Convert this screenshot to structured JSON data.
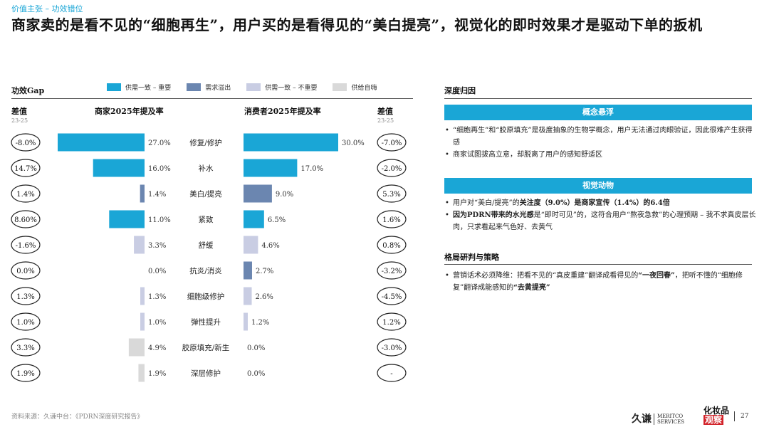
{
  "breadcrumb": "价值主张 – 功效错位",
  "title": "商家卖的是看不见的“细胞再生”，用户买的是看得见的“美白提亮”，视觉化的即时效果才是驱动下单的扳机",
  "gap_label": "功效Gap",
  "legend": [
    {
      "label": "供需一致 – 重要",
      "color": "#1aa6d6"
    },
    {
      "label": "需求溢出",
      "color": "#6b86b0"
    },
    {
      "label": "供需一致 – 不重要",
      "color": "#c9cde3"
    },
    {
      "label": "供给自嗨",
      "color": "#d9d9d9"
    }
  ],
  "columns": {
    "diff_left": "差值",
    "diff_left_sub": "23-25",
    "merchant": "商家2025年提及率",
    "consumer": "消费者2025年提及率",
    "diff_right": "差值",
    "diff_right_sub": "23-25"
  },
  "chart_data": {
    "type": "bar",
    "categories": [
      "修复/修护",
      "补水",
      "美白/提亮",
      "紧致",
      "舒缓",
      "抗炎/消炎",
      "细胞级修护",
      "弹性提升",
      "胶原填充/新生",
      "深层修护"
    ],
    "series": [
      {
        "name": "商家2025年提及率",
        "values": [
          27.0,
          16.0,
          1.4,
          11.0,
          3.3,
          0.0,
          1.3,
          1.0,
          4.9,
          1.9
        ],
        "labels": [
          "27.0%",
          "16.0%",
          "1.4%",
          "11.0%",
          "3.3%",
          "0.0%",
          "1.3%",
          "1.0%",
          "4.9%",
          "1.9%"
        ]
      },
      {
        "name": "消费者2025年提及率",
        "values": [
          30.0,
          17.0,
          9.0,
          6.5,
          4.6,
          2.7,
          2.6,
          1.2,
          0.0,
          0.0
        ],
        "labels": [
          "30.0%",
          "17.0%",
          "9.0%",
          "6.5%",
          "4.6%",
          "2.7%",
          "2.6%",
          "1.2%",
          "0.0%",
          "0.0%"
        ]
      }
    ],
    "group": [
      "供需一致 – 重要",
      "供需一致 – 重要",
      "需求溢出",
      "供需一致 – 重要",
      "供需一致 – 不重要",
      "需求溢出",
      "供需一致 – 不重要",
      "供需一致 – 不重要",
      "供给自嗨",
      "供给自嗨"
    ],
    "diff_merchant": [
      "-8.0%",
      "14.7%",
      "1.4%",
      "8.60%",
      "-1.6%",
      "0.0%",
      "1.3%",
      "1.0%",
      "3.3%",
      "1.9%"
    ],
    "diff_consumer": [
      "-7.0%",
      "-2.0%",
      "5.3%",
      "1.6%",
      "0.8%",
      "-3.2%",
      "-4.5%",
      "1.2%",
      "-3.0%",
      "-"
    ]
  },
  "right": {
    "section1_title": "深度归因",
    "banner1": "概念悬浮",
    "bullets1": [
      "“细胞再生”和“胶原填充”是极度抽象的生物学概念，用户无法通过肉眼验证，因此很难产生获得感",
      "商家试图拔高立意，却脱离了用户的感知舒适区"
    ],
    "banner2": "视觉动物",
    "b2_1_a": "用户对“美白/提亮”的",
    "b2_1_b": "关注度（9.0%）是商家宣传（1.4%）的6.4倍",
    "b2_2_a": "因为PDRN带来的水光感",
    "b2_2_b": "是“即时可见”的，这符合用户“熬夜急救”的心理预期 – 我不求真皮层长肉，只求看起来气色好、去黄气",
    "section2_title": "格局研判与策略",
    "b3_a": "营销话术必须降维：把看不见的“真皮重建”翻译成看得见的",
    "b3_b": "“一夜回春”",
    "b3_c": "，把听不懂的“细胞修复”翻译成能感知的",
    "b3_d": "“去黄提亮”"
  },
  "footer": {
    "source": "资料来源：久谦中台：《PDRN深度研究报告》",
    "logo1_main": "久谦",
    "logo1_sub1": "MERITCO",
    "logo1_sub2": "SERVICES",
    "logo2_line1": "化妆品",
    "logo2_line2": "观察",
    "page": "27"
  }
}
